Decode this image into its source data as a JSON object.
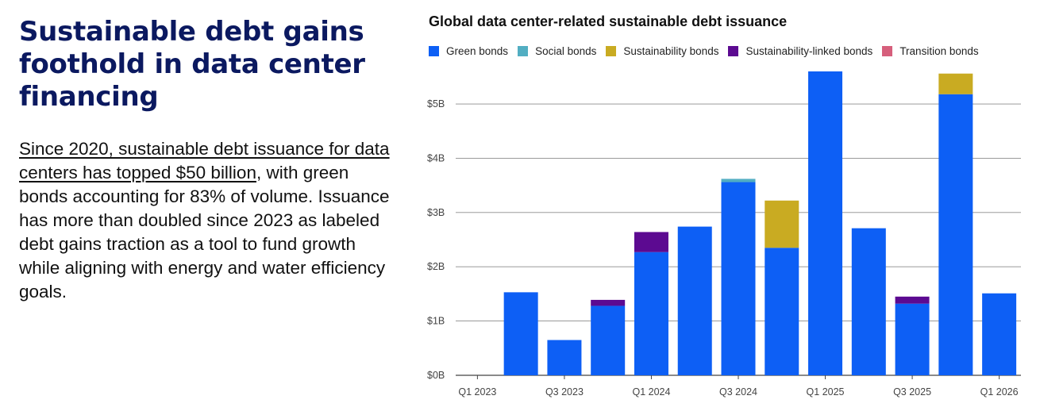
{
  "headline": "Sustainable debt gains foothold in data center financing",
  "body": {
    "link_text": "Since 2020, sustainable debt issuance for data centers has topped $50 billion",
    "rest_text": ", with green bonds accounting for 83% of volume. Issuance has more than doubled since 2023 as labeled debt gains traction as a tool to fund growth while aligning with energy and water efficiency goals."
  },
  "chart_data": {
    "type": "bar",
    "stacked": true,
    "title": "Global data center-related sustainable debt issuance",
    "xlabel": "",
    "ylabel": "",
    "categories": [
      "Q1 2023",
      "Q2 2023",
      "Q3 2023",
      "Q4 2023",
      "Q1 2024",
      "Q2 2024",
      "Q3 2024",
      "Q4 2024",
      "Q1 2025",
      "Q2 2025",
      "Q3 2025",
      "Q4 2025",
      "Q1 2026"
    ],
    "x_tick_labels": [
      "Q1 2023",
      "",
      "Q3 2023",
      "",
      "Q1 2024",
      "",
      "Q3 2024",
      "",
      "Q1 2025",
      "",
      "Q3 2025",
      "",
      "Q1 2026"
    ],
    "ylim": [
      0,
      5.6
    ],
    "y_ticks": [
      0,
      1,
      2,
      3,
      4,
      5
    ],
    "y_tick_labels": [
      "$0B",
      "$1B",
      "$2B",
      "$3B",
      "$4B",
      "$5B"
    ],
    "grid": true,
    "legend_position": "top-left",
    "series": [
      {
        "name": "Green bonds",
        "color": "#0d5ff5",
        "values": [
          0,
          1.53,
          0.65,
          1.28,
          2.27,
          2.74,
          3.56,
          2.35,
          5.62,
          2.71,
          1.32,
          5.18,
          1.51
        ]
      },
      {
        "name": "Social bonds",
        "color": "#52aec2",
        "values": [
          0,
          0,
          0,
          0,
          0,
          0,
          0.06,
          0,
          0,
          0,
          0,
          0,
          0
        ]
      },
      {
        "name": "Sustainability bonds",
        "color": "#c9ab22",
        "values": [
          0,
          0,
          0,
          0,
          0,
          0,
          0,
          0.87,
          0,
          0,
          0,
          0.38,
          0
        ]
      },
      {
        "name": "Sustainability-linked bonds",
        "color": "#5c0a91",
        "values": [
          0,
          0,
          0,
          0.11,
          0.37,
          0,
          0,
          0,
          0,
          0,
          0.13,
          0,
          0
        ]
      },
      {
        "name": "Transition bonds",
        "color": "#d65f7c",
        "values": [
          0,
          0,
          0,
          0,
          0,
          0,
          0,
          0,
          0,
          0,
          0,
          0,
          0
        ]
      }
    ]
  }
}
